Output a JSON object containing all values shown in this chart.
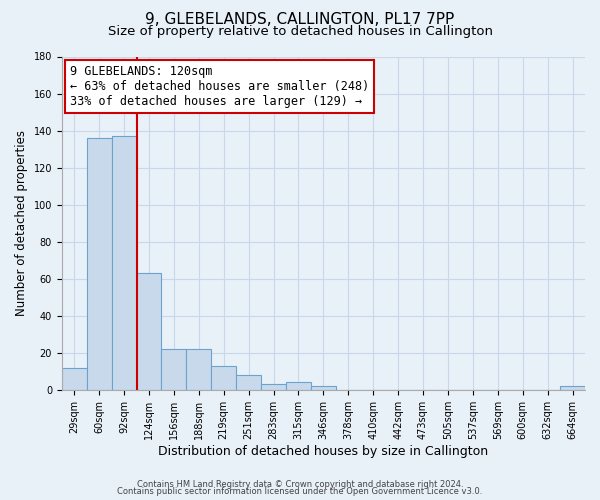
{
  "title": "9, GLEBELANDS, CALLINGTON, PL17 7PP",
  "subtitle": "Size of property relative to detached houses in Callington",
  "xlabel": "Distribution of detached houses by size in Callington",
  "ylabel": "Number of detached properties",
  "bar_values": [
    12,
    136,
    137,
    63,
    22,
    22,
    13,
    8,
    3,
    4,
    2,
    0,
    0,
    0,
    0,
    0,
    0,
    0,
    0,
    0,
    2
  ],
  "tick_labels": [
    "29sqm",
    "60sqm",
    "92sqm",
    "124sqm",
    "156sqm",
    "188sqm",
    "219sqm",
    "251sqm",
    "283sqm",
    "315sqm",
    "346sqm",
    "378sqm",
    "410sqm",
    "442sqm",
    "473sqm",
    "505sqm",
    "537sqm",
    "569sqm",
    "600sqm",
    "632sqm",
    "664sqm"
  ],
  "bar_color": "#c9d9ec",
  "bar_edge_color": "#6ba3cc",
  "property_line_value": 2.5,
  "property_line_color": "#cc0000",
  "annotation_line1": "9 GLEBELANDS: 120sqm",
  "annotation_line2": "← 63% of detached houses are smaller (248)",
  "annotation_line3": "33% of detached houses are larger (129) →",
  "annotation_box_facecolor": "#ffffff",
  "annotation_box_edgecolor": "#cc0000",
  "ylim": [
    0,
    180
  ],
  "yticks": [
    0,
    20,
    40,
    60,
    80,
    100,
    120,
    140,
    160,
    180
  ],
  "grid_color": "#c8d8e8",
  "background_color": "#e8f0f8",
  "footer_line1": "Contains HM Land Registry data © Crown copyright and database right 2024.",
  "footer_line2": "Contains public sector information licensed under the Open Government Licence v3.0.",
  "title_fontsize": 11,
  "subtitle_fontsize": 9.5,
  "annotation_fontsize": 8.5,
  "ylabel_fontsize": 8.5,
  "xlabel_fontsize": 9,
  "tick_fontsize": 7,
  "footer_fontsize": 6
}
